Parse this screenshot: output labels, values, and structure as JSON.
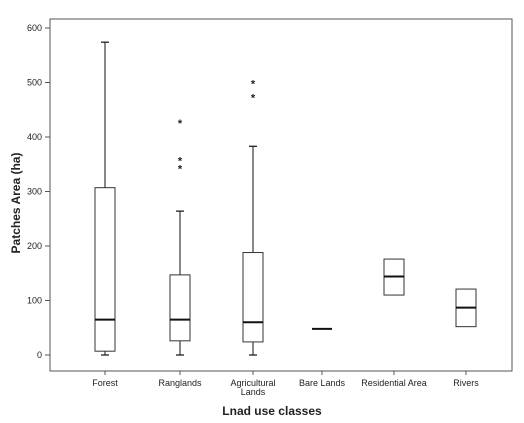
{
  "chart_data": {
    "type": "boxplot",
    "xlabel": "Lnad use classes",
    "ylabel": "Patches Area (ha)",
    "ylim": [
      0,
      600
    ],
    "yticks": [
      0,
      100,
      200,
      300,
      400,
      500,
      600
    ],
    "ytick_labels": [
      "0",
      "100",
      "200",
      "300",
      "400",
      "500",
      "600"
    ],
    "grid": false,
    "categories": [
      {
        "label": [
          "Forest"
        ],
        "min": 0,
        "q1": 7,
        "median": 65,
        "q3": 307,
        "max": 574,
        "outliers": []
      },
      {
        "label": [
          "Ranglands"
        ],
        "min": 0,
        "q1": 26,
        "median": 65,
        "q3": 147,
        "max": 264,
        "outliers": [
          341,
          356,
          425
        ]
      },
      {
        "label": [
          "Agricultural",
          "Lands"
        ],
        "min": 0,
        "q1": 24,
        "median": 60,
        "q3": 188,
        "max": 383,
        "outliers": [
          472,
          497
        ]
      },
      {
        "label": [
          "Bare Lands"
        ],
        "min": 48,
        "q1": 48,
        "median": 48,
        "q3": 48,
        "max": 48,
        "outliers": []
      },
      {
        "label": [
          "Residential Area"
        ],
        "min": 110,
        "q1": 110,
        "median": 144,
        "q3": 176,
        "max": 176,
        "outliers": []
      },
      {
        "label": [
          "Rivers"
        ],
        "min": 52,
        "q1": 52,
        "median": 87,
        "q3": 121,
        "max": 121,
        "outliers": []
      }
    ]
  }
}
